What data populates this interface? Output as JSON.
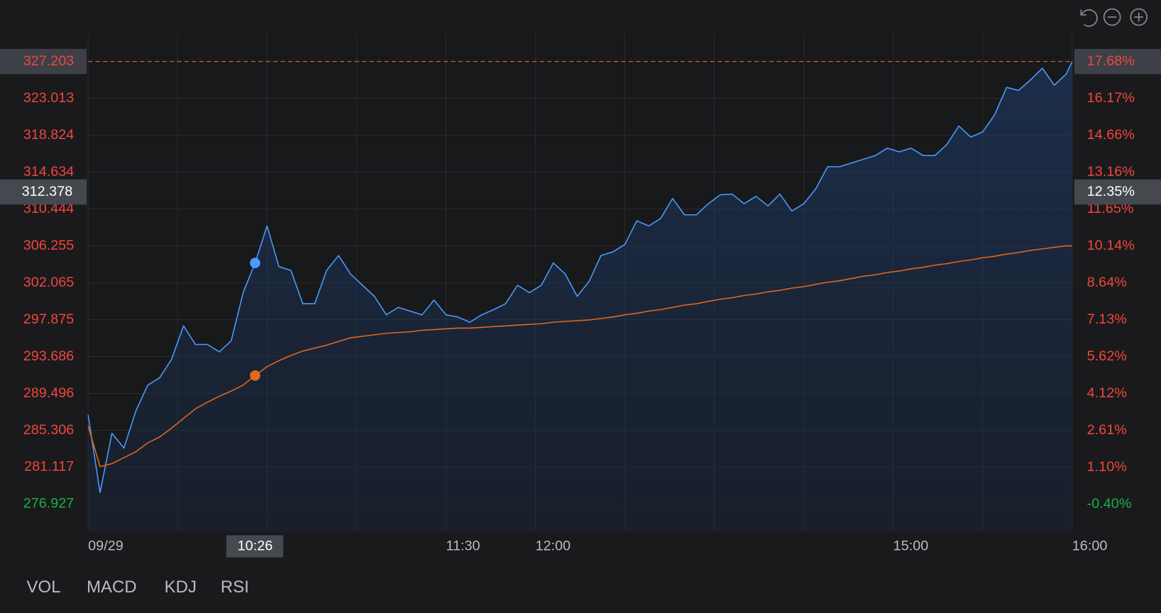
{
  "chart_data": {
    "type": "line",
    "x": [
      0,
      4,
      8,
      12,
      16,
      20,
      24,
      28,
      32,
      36,
      40,
      44,
      48,
      52,
      56,
      60,
      64,
      68,
      72,
      76,
      80,
      84,
      88,
      92,
      96,
      100,
      104,
      108,
      112,
      116,
      120,
      124,
      128,
      132,
      136,
      140,
      144,
      148,
      152,
      156,
      160,
      164,
      168,
      172,
      176,
      180,
      184,
      188,
      192,
      196,
      200,
      204,
      208,
      212,
      216,
      220,
      224,
      228,
      232,
      236,
      240,
      244,
      248,
      252,
      256,
      260,
      264,
      268,
      272,
      276,
      280,
      284,
      288,
      292,
      296,
      300,
      304,
      308,
      312,
      316,
      320,
      324,
      328,
      330
    ],
    "xlim": [
      0,
      330
    ],
    "xticks": [
      {
        "value": 0,
        "label": "09/29"
      },
      {
        "value": 120,
        "label": "11:30"
      },
      {
        "value": 150,
        "label": "12:00"
      },
      {
        "value": 270,
        "label": "15:00"
      },
      {
        "value": 330,
        "label": "16:00"
      }
    ],
    "xgrid": [
      30,
      60,
      90,
      120,
      150,
      180,
      210,
      240,
      270,
      300,
      330
    ],
    "ylim": [
      273.81,
      330.4
    ],
    "yticks": [
      327.203,
      323.013,
      318.824,
      314.634,
      310.444,
      306.255,
      302.065,
      297.875,
      293.686,
      289.496,
      285.306,
      281.117,
      276.927
    ],
    "y2lim": [
      -1.52,
      18.83
    ],
    "y2ticks": [
      {
        "value": 17.68,
        "label": "17.68%"
      },
      {
        "value": 16.17,
        "label": "16.17%"
      },
      {
        "value": 14.66,
        "label": "14.66%"
      },
      {
        "value": 13.16,
        "label": "13.16%"
      },
      {
        "value": 11.65,
        "label": "11.65%"
      },
      {
        "value": 10.14,
        "label": "10.14%"
      },
      {
        "value": 8.64,
        "label": "8.64%"
      },
      {
        "value": 7.13,
        "label": "7.13%"
      },
      {
        "value": 5.62,
        "label": "5.62%"
      },
      {
        "value": 4.12,
        "label": "4.12%"
      },
      {
        "value": 2.61,
        "label": "2.61%"
      },
      {
        "value": 1.1,
        "label": "1.10%"
      },
      {
        "value": -0.4,
        "label": "-0.40%"
      }
    ],
    "grid": true,
    "up_color": "#f0463c",
    "down_color": "#19b040",
    "series": [
      {
        "color": "#4b9bff",
        "area": true,
        "values": [
          287.07,
          278.24,
          284.97,
          283.29,
          287.49,
          290.44,
          291.28,
          293.38,
          297.17,
          295.06,
          295.06,
          294.22,
          295.48,
          300.95,
          304.32,
          308.52,
          303.9,
          303.48,
          299.69,
          299.69,
          303.48,
          305.16,
          303.06,
          301.79,
          300.53,
          298.43,
          299.27,
          298.85,
          298.43,
          300.11,
          298.43,
          298.18,
          297.59,
          298.43,
          299.02,
          299.69,
          301.79,
          300.95,
          301.79,
          304.32,
          303.06,
          300.53,
          302.21,
          305.16,
          305.58,
          306.42,
          309.11,
          308.52,
          309.37,
          311.64,
          309.79,
          309.79,
          311.05,
          312.06,
          312.14,
          311.05,
          311.89,
          310.8,
          312.14,
          310.21,
          311.05,
          312.73,
          315.25,
          315.25,
          315.67,
          316.1,
          316.52,
          317.36,
          316.94,
          317.36,
          316.52,
          316.52,
          317.78,
          319.88,
          318.62,
          319.21,
          321.14,
          324.26,
          323.92,
          325.1,
          326.44,
          324.51,
          325.77,
          327.2
        ]
      },
      {
        "color": "#e0681e",
        "area": false,
        "values": [
          285.81,
          281.19,
          281.52,
          282.2,
          282.87,
          283.88,
          284.55,
          285.56,
          286.66,
          287.75,
          288.5,
          289.18,
          289.77,
          290.44,
          291.53,
          292.54,
          293.22,
          293.81,
          294.31,
          294.65,
          294.98,
          295.4,
          295.82,
          295.99,
          296.16,
          296.33,
          296.41,
          296.5,
          296.67,
          296.75,
          296.84,
          296.92,
          296.92,
          297.0,
          297.09,
          297.17,
          297.26,
          297.34,
          297.42,
          297.59,
          297.68,
          297.76,
          297.84,
          298.01,
          298.18,
          298.43,
          298.6,
          298.85,
          299.02,
          299.27,
          299.53,
          299.69,
          299.95,
          300.2,
          300.37,
          300.62,
          300.79,
          301.04,
          301.21,
          301.46,
          301.63,
          301.88,
          302.13,
          302.3,
          302.55,
          302.81,
          302.98,
          303.23,
          303.4,
          303.65,
          303.82,
          304.07,
          304.24,
          304.49,
          304.66,
          304.91,
          305.08,
          305.33,
          305.5,
          305.75,
          305.92,
          306.09,
          306.26,
          306.26
        ]
      }
    ],
    "crosshair": {
      "x": 56,
      "x_label": "10:26",
      "y": 312.378,
      "y2": 12.35,
      "y2_label": "12.35%"
    }
  },
  "indicator_tabs": [
    "VOL",
    "MACD",
    "KDJ",
    "RSI"
  ]
}
